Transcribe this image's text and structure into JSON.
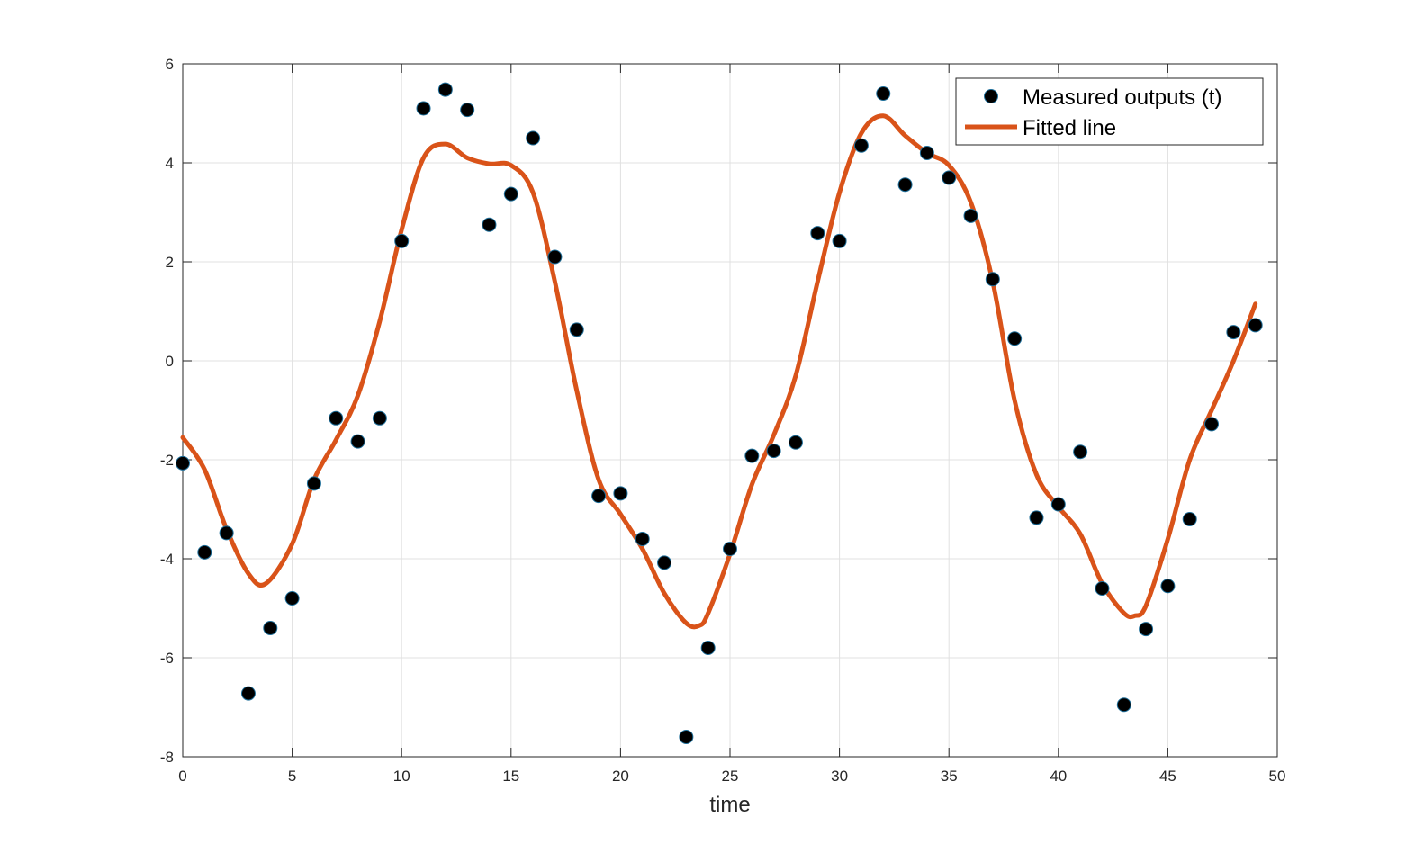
{
  "chart_data": {
    "type": "scatter",
    "title": "",
    "xlabel": "time",
    "ylabel": "",
    "xlim": [
      0,
      50
    ],
    "ylim": [
      -8,
      6
    ],
    "xticks": [
      0,
      5,
      10,
      15,
      20,
      25,
      30,
      35,
      40,
      45,
      50
    ],
    "yticks": [
      -8,
      -6,
      -4,
      -2,
      0,
      2,
      4,
      6
    ],
    "grid": true,
    "legend_position": "top-right",
    "colors": {
      "measured": "#000000",
      "measured_edge": "#1f6f9a",
      "fitted": "#d95319",
      "grid": "#e0e0e0",
      "axis": "#262626"
    },
    "series": [
      {
        "name": "Measured outputs (t)",
        "kind": "scatter",
        "x": [
          0,
          1,
          2,
          3,
          4,
          5,
          6,
          7,
          8,
          9,
          10,
          11,
          12,
          13,
          14,
          15,
          16,
          17,
          18,
          19,
          20,
          21,
          22,
          23,
          24,
          25,
          26,
          27,
          28,
          29,
          30,
          31,
          32,
          33,
          34,
          35,
          36,
          37,
          38,
          39,
          40,
          41,
          42,
          43,
          44,
          45,
          46,
          47,
          48,
          49
        ],
        "y": [
          -2.07,
          -3.87,
          -3.48,
          -6.72,
          -5.4,
          -4.8,
          -2.48,
          -1.16,
          -1.63,
          -1.16,
          2.42,
          5.1,
          5.48,
          5.07,
          2.75,
          3.37,
          4.5,
          2.1,
          0.63,
          -2.73,
          -2.68,
          -3.6,
          -4.08,
          -7.6,
          -5.8,
          -3.8,
          -1.92,
          -1.82,
          -1.65,
          2.58,
          2.42,
          4.35,
          5.4,
          3.56,
          4.2,
          3.7,
          2.93,
          1.65,
          0.45,
          -3.17,
          -2.9,
          -1.84,
          -4.6,
          -6.95,
          -5.42,
          -4.55,
          -3.2,
          -1.28,
          0.58,
          0.72
        ]
      },
      {
        "name": "Fitted line",
        "kind": "line",
        "x": [
          0,
          1,
          2,
          3,
          3.8,
          5,
          6,
          7,
          8,
          9,
          10,
          11,
          12,
          13,
          14,
          15,
          16,
          17,
          18,
          19,
          20,
          21,
          22,
          23,
          23.6,
          24,
          25,
          26,
          27,
          28,
          29,
          30,
          31,
          32,
          33,
          34,
          35,
          36,
          37,
          38,
          39,
          40,
          41,
          42,
          43,
          43.5,
          44,
          45,
          46,
          47,
          48,
          49
        ],
        "y": [
          -1.55,
          -2.2,
          -3.4,
          -4.3,
          -4.5,
          -3.7,
          -2.4,
          -1.6,
          -0.7,
          0.8,
          2.65,
          4.1,
          4.38,
          4.1,
          3.98,
          3.95,
          3.4,
          1.6,
          -0.6,
          -2.4,
          -3.1,
          -3.8,
          -4.7,
          -5.3,
          -5.35,
          -5.1,
          -3.9,
          -2.5,
          -1.5,
          -0.3,
          1.6,
          3.4,
          4.6,
          4.95,
          4.55,
          4.2,
          3.95,
          3.2,
          1.6,
          -0.8,
          -2.3,
          -2.95,
          -3.5,
          -4.5,
          -5.1,
          -5.15,
          -4.95,
          -3.6,
          -2.0,
          -1.0,
          0.0,
          1.15
        ]
      }
    ]
  }
}
